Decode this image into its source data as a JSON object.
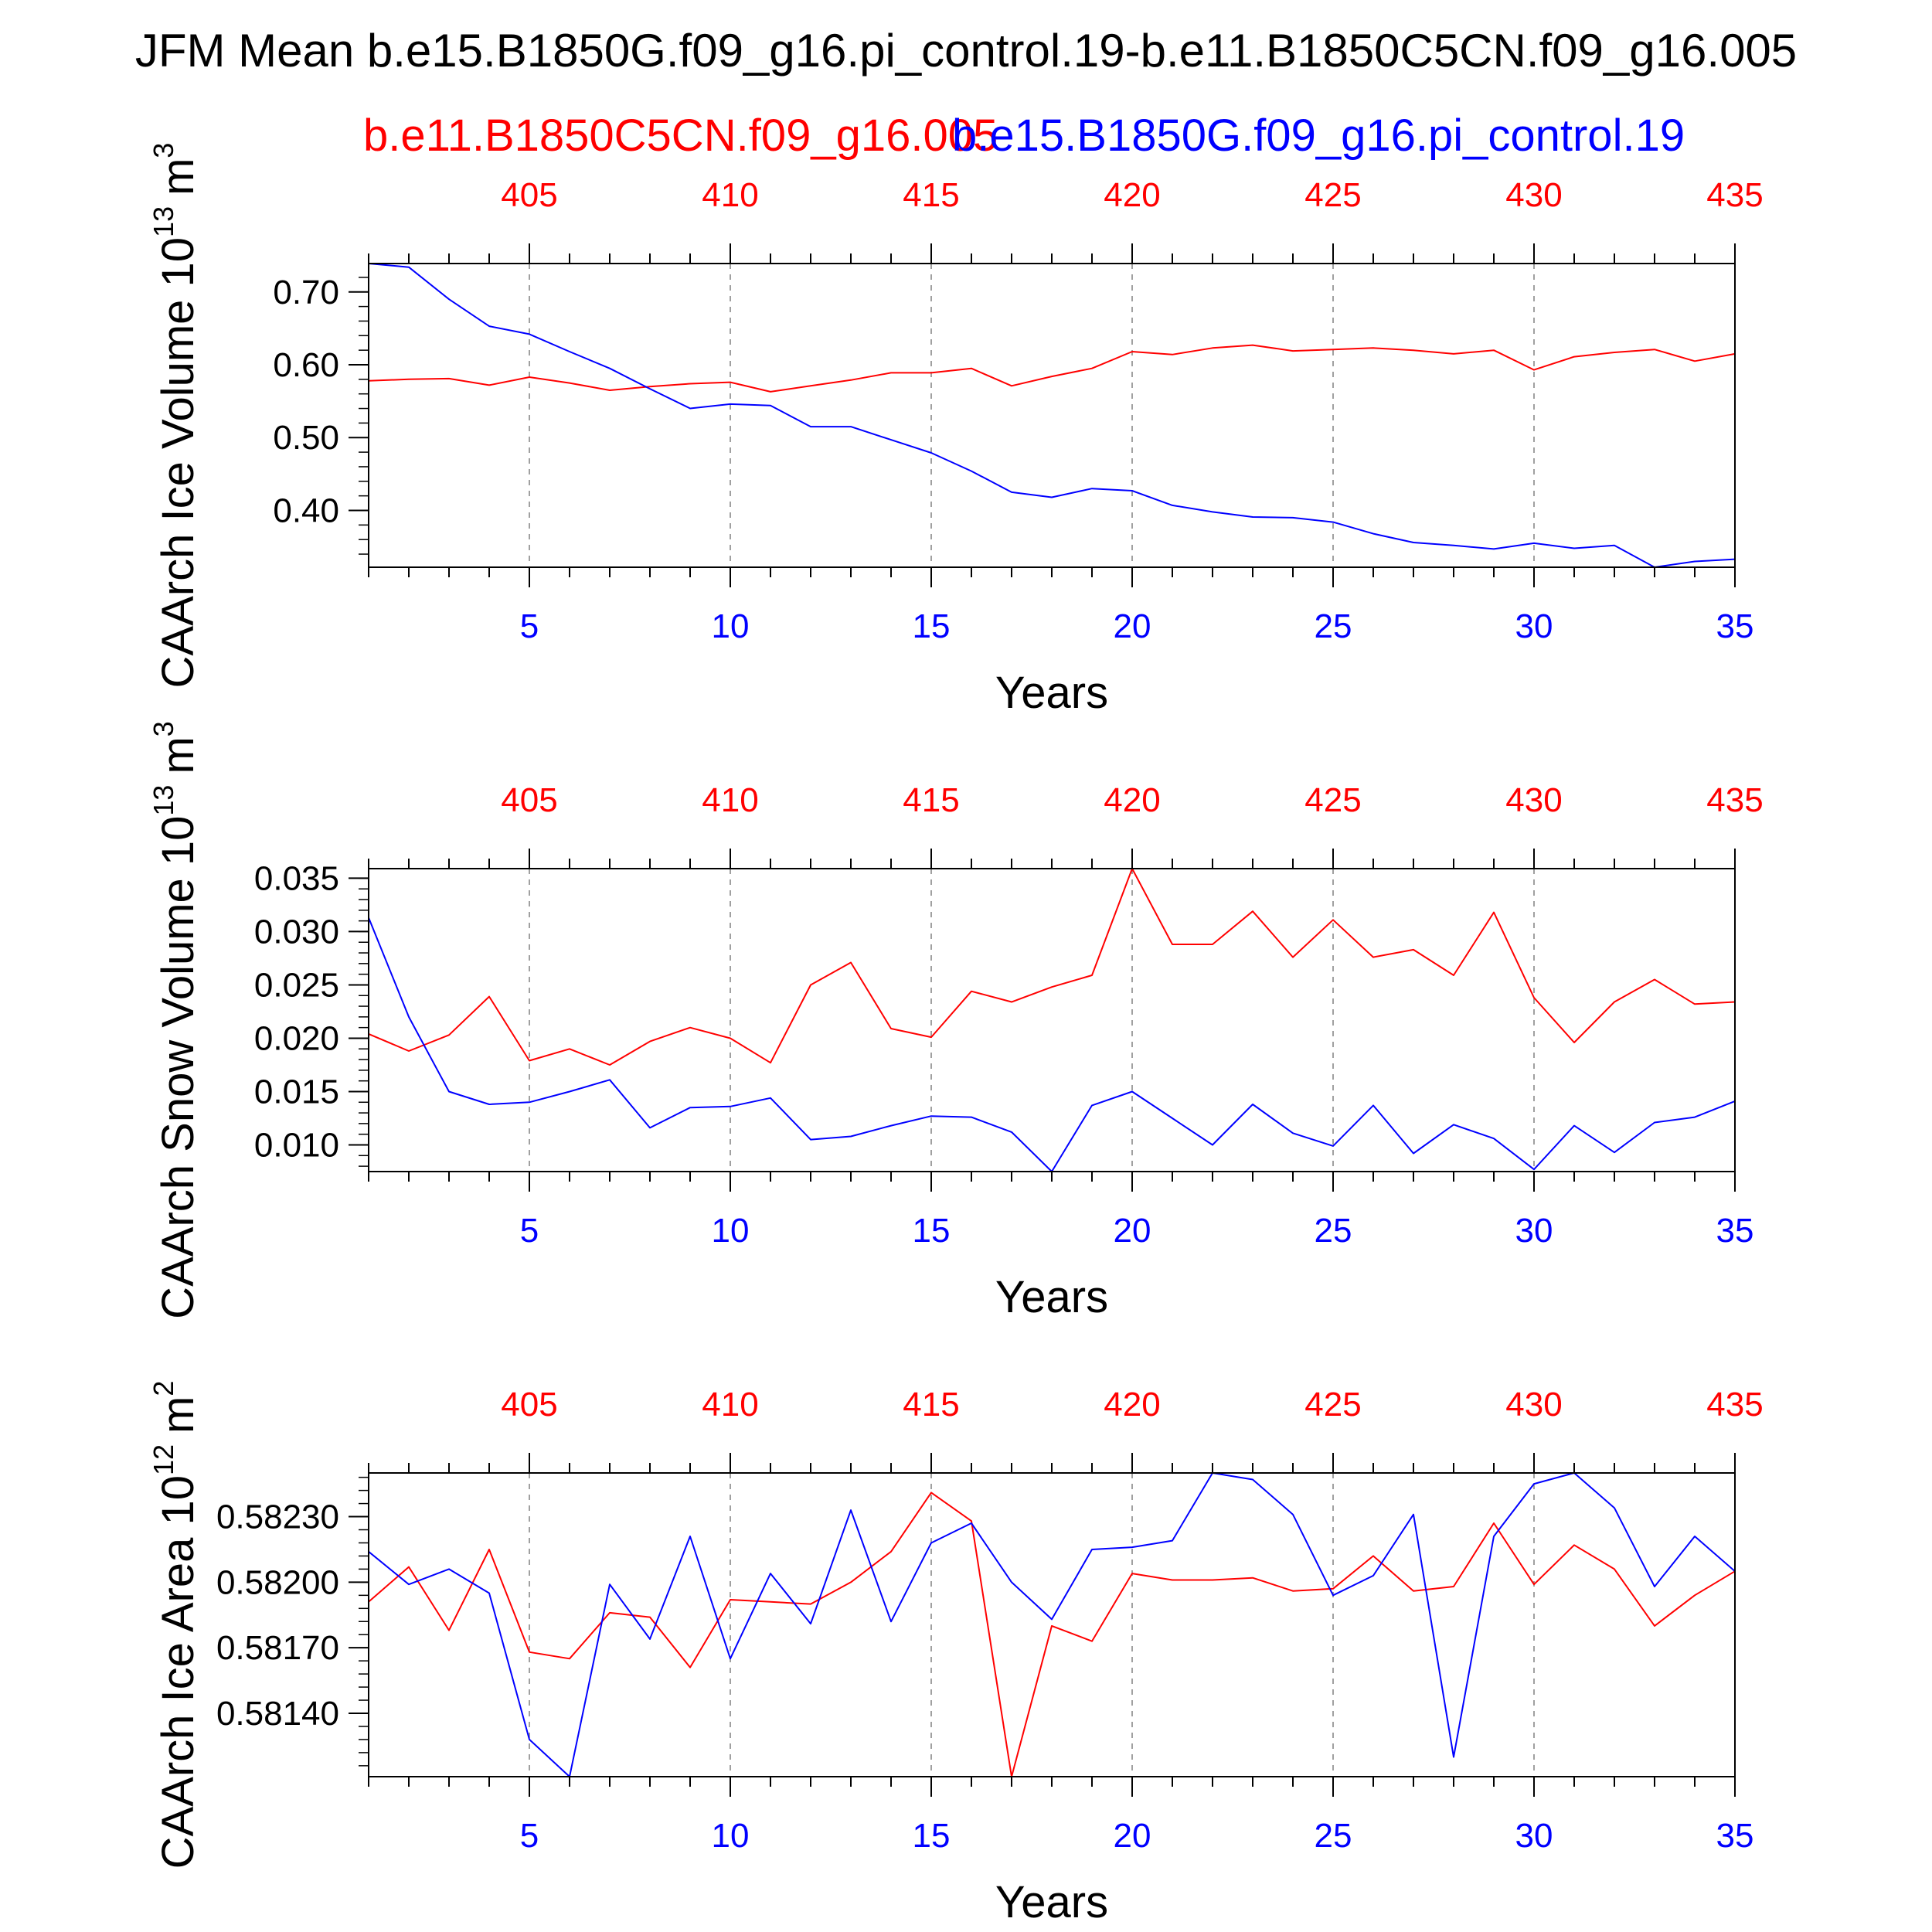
{
  "title": "JFM Mean b.e15.B1850G.f09_g16.pi_control.19-b.e11.B1850C5CN.f09_g16.005",
  "legend": {
    "red_label": "b.e11.B1850C5CN.f09_g16.005",
    "blue_label": "b.e15.B1850G.f09_g16.pi_control.19"
  },
  "colors": {
    "red": "#ff0000",
    "blue": "#0000ff",
    "axis": "#000000",
    "grid": "#808080"
  },
  "chart_data": [
    {
      "type": "line",
      "ylabel": "CAArch Ice Volume 10^13 m^3",
      "ylabel_main": "CAArch Ice Volume 10",
      "ylabel_exp": "13",
      "ylabel_unit": "m",
      "ylabel_unit_exp": "3",
      "xlabel": "Years",
      "xlim": [
        1,
        35
      ],
      "ylim": [
        0.322,
        0.739
      ],
      "bottom_ticks": [
        5,
        10,
        15,
        20,
        25,
        30,
        35
      ],
      "bottom_tick_labels": [
        "5",
        "10",
        "15",
        "20",
        "25",
        "30",
        "35"
      ],
      "top_tick_labels": [
        "405",
        "410",
        "415",
        "420",
        "425",
        "430",
        "435"
      ],
      "y_ticks": [
        0.4,
        0.5,
        0.6,
        0.7
      ],
      "y_tick_labels": [
        "0.40",
        "0.50",
        "0.60",
        "0.70"
      ],
      "y_minor_step": 0.02,
      "x": [
        1,
        2,
        3,
        4,
        5,
        6,
        7,
        8,
        9,
        10,
        11,
        12,
        13,
        14,
        15,
        16,
        17,
        18,
        19,
        20,
        21,
        22,
        23,
        24,
        25,
        26,
        27,
        28,
        29,
        30,
        31,
        32,
        33,
        34,
        35
      ],
      "series": [
        {
          "name": "b.e11.B1850C5CN.f09_g16.005",
          "color": "red",
          "values": [
            0.578,
            0.58,
            0.581,
            0.572,
            0.583,
            0.575,
            0.565,
            0.57,
            0.574,
            0.576,
            0.563,
            0.571,
            0.579,
            0.589,
            0.589,
            0.595,
            0.571,
            0.584,
            0.595,
            0.618,
            0.614,
            0.623,
            0.627,
            0.619,
            0.621,
            0.623,
            0.62,
            0.615,
            0.62,
            0.593,
            0.611,
            0.617,
            0.621,
            0.605,
            0.615
          ]
        },
        {
          "name": "b.e15.B1850G.f09_g16.pi_control.19",
          "color": "blue",
          "values": [
            0.739,
            0.734,
            0.69,
            0.653,
            0.642,
            0.618,
            0.595,
            0.567,
            0.54,
            0.546,
            0.544,
            0.515,
            0.515,
            0.497,
            0.479,
            0.454,
            0.425,
            0.418,
            0.43,
            0.427,
            0.407,
            0.398,
            0.391,
            0.39,
            0.384,
            0.368,
            0.356,
            0.352,
            0.347,
            0.355,
            0.348,
            0.352,
            0.322,
            0.33,
            0.333
          ]
        }
      ]
    },
    {
      "type": "line",
      "ylabel": "CAArch Snow Volume 10^13 m^3",
      "ylabel_main": "CAArch Snow Volume 10",
      "ylabel_exp": "13",
      "ylabel_unit": "m",
      "ylabel_unit_exp": "3",
      "xlabel": "Years",
      "xlim": [
        1,
        35
      ],
      "ylim": [
        0.0075,
        0.0359
      ],
      "bottom_ticks": [
        5,
        10,
        15,
        20,
        25,
        30,
        35
      ],
      "bottom_tick_labels": [
        "5",
        "10",
        "15",
        "20",
        "25",
        "30",
        "35"
      ],
      "top_tick_labels": [
        "405",
        "410",
        "415",
        "420",
        "425",
        "430",
        "435"
      ],
      "y_ticks": [
        0.01,
        0.015,
        0.02,
        0.025,
        0.03,
        0.035
      ],
      "y_tick_labels": [
        "0.010",
        "0.015",
        "0.020",
        "0.025",
        "0.030",
        "0.035"
      ],
      "y_minor_step": 0.001,
      "x": [
        1,
        2,
        3,
        4,
        5,
        6,
        7,
        8,
        9,
        10,
        11,
        12,
        13,
        14,
        15,
        16,
        17,
        18,
        19,
        20,
        21,
        22,
        23,
        24,
        25,
        26,
        27,
        28,
        29,
        30,
        31,
        32,
        33,
        34,
        35
      ],
      "series": [
        {
          "name": "b.e11.B1850C5CN.f09_g16.005",
          "color": "red",
          "values": [
            0.0204,
            0.0188,
            0.0203,
            0.0239,
            0.0179,
            0.019,
            0.0175,
            0.0197,
            0.021,
            0.02,
            0.0177,
            0.025,
            0.0271,
            0.0209,
            0.0201,
            0.0244,
            0.0234,
            0.0248,
            0.0259,
            0.0359,
            0.0288,
            0.0288,
            0.0319,
            0.0276,
            0.0311,
            0.0276,
            0.0283,
            0.0259,
            0.0318,
            0.0238,
            0.0196,
            0.0234,
            0.0255,
            0.0232,
            0.0234
          ]
        },
        {
          "name": "b.e15.B1850G.f09_g16.pi_control.19",
          "color": "blue",
          "values": [
            0.0313,
            0.022,
            0.015,
            0.0138,
            0.014,
            0.015,
            0.0161,
            0.0116,
            0.0135,
            0.0136,
            0.0144,
            0.0105,
            0.0108,
            0.0118,
            0.0127,
            0.0126,
            0.0112,
            0.0075,
            0.0137,
            0.015,
            0.0125,
            0.01,
            0.0138,
            0.0111,
            0.0099,
            0.0137,
            0.0092,
            0.0119,
            0.0106,
            0.0077,
            0.0118,
            0.0093,
            0.0121,
            0.0126,
            0.0141
          ]
        }
      ]
    },
    {
      "type": "line",
      "ylabel": "CAArch Ice Area 10^12 m^2",
      "ylabel_main": "CAArch Ice Area 10",
      "ylabel_exp": "12",
      "ylabel_unit": "m",
      "ylabel_unit_exp": "2",
      "xlabel": "Years",
      "xlim": [
        1,
        35
      ],
      "ylim": [
        0.58111,
        0.5825
      ],
      "bottom_ticks": [
        5,
        10,
        15,
        20,
        25,
        30,
        35
      ],
      "bottom_tick_labels": [
        "5",
        "10",
        "15",
        "20",
        "25",
        "30",
        "35"
      ],
      "top_tick_labels": [
        "405",
        "410",
        "415",
        "420",
        "425",
        "430",
        "435"
      ],
      "y_ticks": [
        0.5814,
        0.5817,
        0.582,
        0.5823
      ],
      "y_tick_labels": [
        "0.58140",
        "0.58170",
        "0.58200",
        "0.58230"
      ],
      "y_minor_step": 6e-05,
      "x": [
        1,
        2,
        3,
        4,
        5,
        6,
        7,
        8,
        9,
        10,
        11,
        12,
        13,
        14,
        15,
        16,
        17,
        18,
        19,
        20,
        21,
        22,
        23,
        24,
        25,
        26,
        27,
        28,
        29,
        30,
        31,
        32,
        33,
        34,
        35
      ],
      "series": [
        {
          "name": "b.e11.B1850C5CN.f09_g16.005",
          "color": "red",
          "values": [
            0.58191,
            0.58207,
            0.58178,
            0.58215,
            0.58168,
            0.58165,
            0.58186,
            0.58184,
            0.58161,
            0.58192,
            0.58191,
            0.5819,
            0.582,
            0.58214,
            0.58241,
            0.58228,
            0.58111,
            0.5818,
            0.58173,
            0.58204,
            0.58201,
            0.58201,
            0.58202,
            0.58196,
            0.58197,
            0.58212,
            0.58196,
            0.58198,
            0.58227,
            0.58199,
            0.58217,
            0.58206,
            0.5818,
            0.58194,
            0.58205
          ]
        },
        {
          "name": "b.e15.B1850G.f09_g16.pi_control.19",
          "color": "blue",
          "values": [
            0.58214,
            0.58199,
            0.58206,
            0.58195,
            0.58128,
            0.58111,
            0.58199,
            0.58174,
            0.58221,
            0.58165,
            0.58204,
            0.58181,
            0.58233,
            0.58182,
            0.58218,
            0.58227,
            0.582,
            0.58183,
            0.58215,
            0.58216,
            0.58219,
            0.5825,
            0.58247,
            0.58231,
            0.58194,
            0.58203,
            0.58231,
            0.5812,
            0.58221,
            0.58245,
            0.5825,
            0.58234,
            0.58198,
            0.58221,
            0.58205
          ]
        }
      ]
    }
  ]
}
